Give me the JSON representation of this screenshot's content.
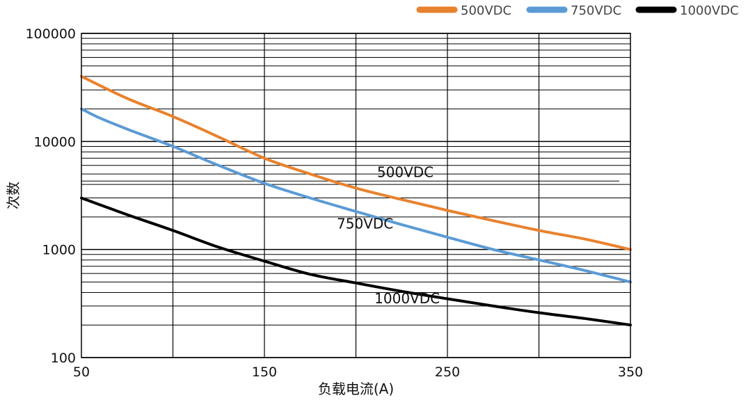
{
  "chart_data": {
    "type": "line",
    "xlabel": "负载电流(A)",
    "ylabel": "次数",
    "xlim": [
      50,
      350
    ],
    "ylim": [
      100,
      100000
    ],
    "yscale": "log",
    "grid": true,
    "xticks": [
      50,
      150,
      250,
      350
    ],
    "xtick_labels": [
      "50",
      "150",
      "250",
      "350"
    ],
    "yticks": [
      100,
      1000,
      10000,
      100000
    ],
    "ytick_labels": [
      "100",
      "1000",
      "10000",
      "100000"
    ],
    "legend_position": "top-right",
    "series": [
      {
        "name": "500VDC",
        "color": "#E8822E",
        "x": [
          50,
          75,
          100,
          125,
          150,
          175,
          200,
          225,
          250,
          275,
          300,
          325,
          350
        ],
        "y": [
          40000,
          25000,
          17000,
          11000,
          7000,
          5000,
          3700,
          2900,
          2300,
          1850,
          1500,
          1250,
          1000
        ]
      },
      {
        "name": "750VDC",
        "color": "#5B9BD5",
        "x": [
          50,
          60,
          75,
          100,
          125,
          150,
          175,
          200,
          225,
          250,
          275,
          300,
          325,
          350
        ],
        "y": [
          20000,
          16500,
          13000,
          9000,
          6000,
          4100,
          3000,
          2250,
          1700,
          1300,
          1000,
          800,
          640,
          500
        ]
      },
      {
        "name": "1000VDC",
        "color": "#000000",
        "x": [
          50,
          60,
          75,
          100,
          125,
          150,
          175,
          200,
          225,
          250,
          275,
          300,
          325,
          350
        ],
        "y": [
          3000,
          2600,
          2100,
          1500,
          1050,
          780,
          590,
          490,
          410,
          350,
          300,
          260,
          230,
          200
        ]
      }
    ],
    "annotations": [
      "500VDC",
      "750VDC",
      "1000VDC"
    ]
  }
}
